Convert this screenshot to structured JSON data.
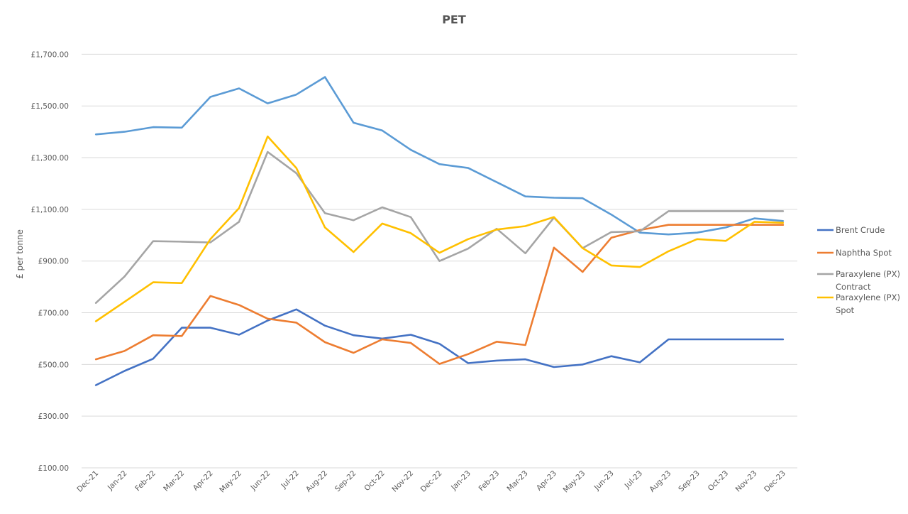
{
  "chart_data": {
    "type": "line",
    "title": "PET",
    "xlabel": "",
    "ylabel": "£ per tonne",
    "ylim": [
      100,
      1800
    ],
    "yticks": [
      100,
      300,
      500,
      700,
      900,
      1100,
      1300,
      1500,
      1700
    ],
    "ytick_labels": [
      "£100.00",
      "£300.00",
      "£500.00",
      "£700.00",
      "£900.00",
      "£1,100.00",
      "£1,300.00",
      "£1,500.00",
      "£1,700.00"
    ],
    "grid": true,
    "legend_position": "right",
    "categories": [
      "Dec-21",
      "Jan-22",
      "Feb-22",
      "Mar-22",
      "Apr-22",
      "May-22",
      "Jun-22",
      "Jul-22",
      "Aug-22",
      "Sep-22",
      "Oct-22",
      "Nov-22",
      "Dec-22",
      "Jan-23",
      "Feb-23",
      "Mar-23",
      "Apr-23",
      "May-23",
      "Jun-23",
      "Jul-23",
      "Aug-23",
      "Sep-23",
      "Oct-23",
      "Nov-23",
      "Dec-23"
    ],
    "series": [
      {
        "name": "",
        "color": "#5B9BD5",
        "values": [
          1390,
          1400,
          1418,
          1416,
          1535,
          1568,
          1510,
          1544,
          1612,
          1435,
          1405,
          1330,
          1275,
          1260,
          1205,
          1150,
          1145,
          1143,
          1080,
          1010,
          1003,
          1010,
          1030,
          1065,
          1055
        ]
      },
      {
        "name": "Brent Crude",
        "color": "#4472C4",
        "values": [
          420,
          475,
          522,
          642,
          642,
          615,
          670,
          713,
          650,
          613,
          600,
          615,
          580,
          505,
          515,
          520,
          490,
          500,
          532,
          508,
          597,
          597,
          597,
          597,
          597
        ]
      },
      {
        "name": "Naphtha Spot",
        "color": "#ED7D31",
        "values": [
          520,
          552,
          613,
          610,
          765,
          730,
          677,
          662,
          586,
          545,
          597,
          583,
          502,
          540,
          588,
          575,
          952,
          858,
          990,
          1020,
          1040,
          1040,
          1040,
          1040,
          1040
        ]
      },
      {
        "name": "Paraxylene (PX) Contract",
        "color": "#A5A5A5",
        "values": [
          738,
          840,
          977,
          975,
          972,
          1052,
          1322,
          1240,
          1085,
          1058,
          1108,
          1070,
          900,
          948,
          1025,
          930,
          1068,
          950,
          1012,
          1015,
          1093,
          1093,
          1093,
          1093,
          1093
        ]
      },
      {
        "name": "Paraxylene (PX) Spot",
        "color": "#FFC000",
        "values": [
          667,
          742,
          818,
          815,
          985,
          1105,
          1382,
          1260,
          1030,
          935,
          1045,
          1008,
          932,
          985,
          1022,
          1035,
          1070,
          950,
          883,
          877,
          938,
          985,
          978,
          1052,
          1048
        ]
      }
    ]
  }
}
